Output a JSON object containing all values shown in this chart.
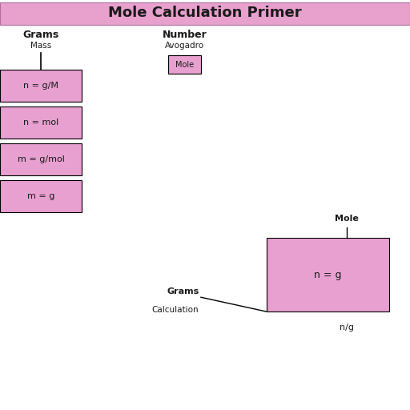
{
  "title": "Mole Calculation Primer",
  "title_bg": "#e8a0cc",
  "title_fontsize": 13,
  "bg_color": "#ffffff",
  "box_color": "#e8a0d0",
  "box_edge": "#000000",
  "left_label_main": "Grams",
  "left_label_sub": "Mass",
  "left_boxes": [
    "n = g/M",
    "n = mol",
    "m = g/mol",
    "m = g"
  ],
  "right_label_main": "Number",
  "right_label_sub": "Avogadro",
  "right_mini_box_text": "Mole",
  "bottom_label_left": "Grams",
  "bottom_label_left2": "Calculation",
  "bottom_label_top": "Mole",
  "bottom_box_text": "n = g",
  "bottom_label_x": "n/g"
}
